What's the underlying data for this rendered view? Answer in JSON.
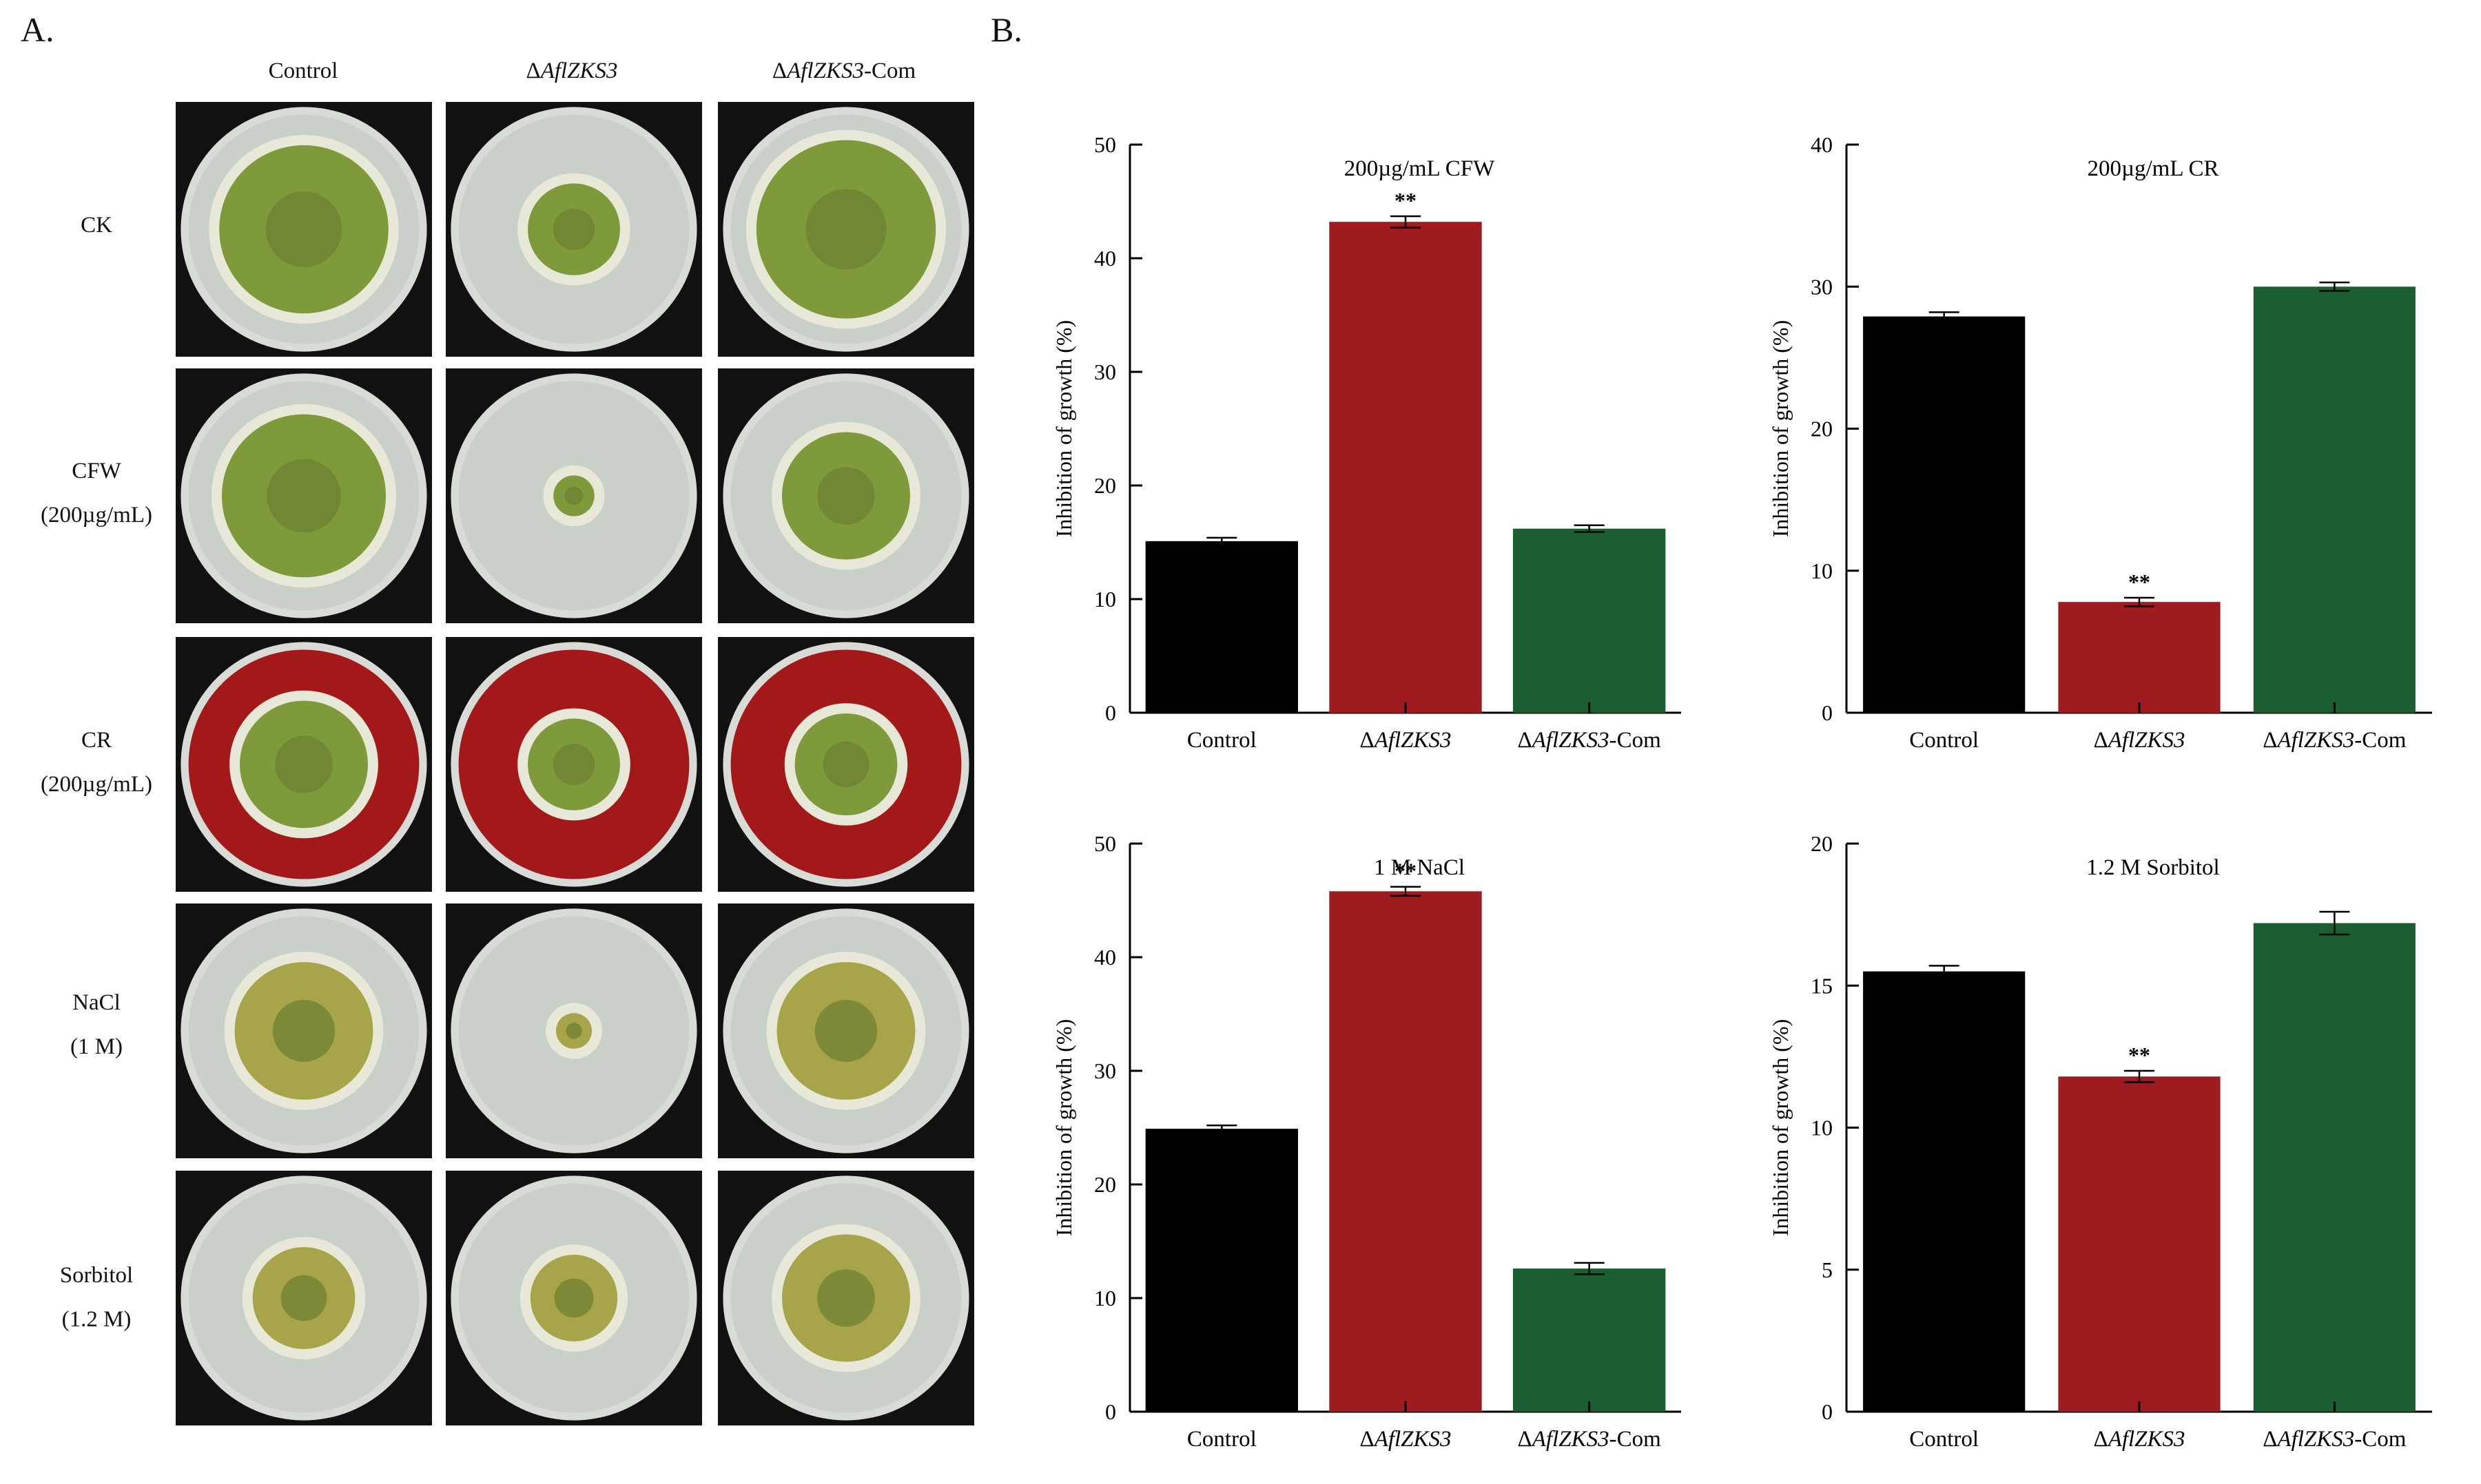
{
  "panel_a": {
    "letter": "A.",
    "column_headers": [
      {
        "prefix": "",
        "italic": "",
        "suffix": "Control"
      },
      {
        "prefix": "Δ",
        "italic": "AflZKS3",
        "suffix": ""
      },
      {
        "prefix": "Δ",
        "italic": "AflZKS3",
        "suffix": "-Com"
      }
    ],
    "row_labels": [
      {
        "line1": "CK",
        "line2": ""
      },
      {
        "line1": "CFW",
        "line2": "(200µg/mL)"
      },
      {
        "line1": "CR",
        "line2": "(200µg/mL)"
      },
      {
        "line1": "NaCl",
        "line2": "(1 M)"
      },
      {
        "line1": "Sorbitol",
        "line2": "(1.2 M)"
      }
    ],
    "colors": {
      "agar": "#c9cfc9",
      "cr_agar": "#a31818",
      "colony_green": "#7f9a3a",
      "colony_yellow": "#a8a44a",
      "tile_bg": "#111111"
    }
  },
  "panel_b": {
    "letter": "B."
  },
  "chart_data": [
    {
      "type": "bar",
      "title": "200µg/mL CFW",
      "ylabel": "Inhibition of growth (%)",
      "categories": [
        {
          "prefix": "",
          "italic": "",
          "suffix": "Control"
        },
        {
          "prefix": "Δ",
          "italic": "AflZKS3",
          "suffix": ""
        },
        {
          "prefix": "Δ",
          "italic": "AflZKS3",
          "suffix": "-Com"
        }
      ],
      "values": [
        15.1,
        43.2,
        16.2
      ],
      "errors": [
        0.3,
        0.5,
        0.3
      ],
      "colors": [
        "#000000",
        "#9e1c20",
        "#1a5e31"
      ],
      "significance": [
        "",
        "**",
        ""
      ],
      "ylim": [
        0,
        50
      ],
      "yticks": [
        0,
        10,
        20,
        30,
        40,
        50
      ]
    },
    {
      "type": "bar",
      "title": "200µg/mL CR",
      "ylabel": "Inhibition of growth (%)",
      "categories": [
        {
          "prefix": "",
          "italic": "",
          "suffix": "Control"
        },
        {
          "prefix": "Δ",
          "italic": "AflZKS3",
          "suffix": ""
        },
        {
          "prefix": "Δ",
          "italic": "AflZKS3",
          "suffix": "-Com"
        }
      ],
      "values": [
        27.9,
        7.8,
        30.0
      ],
      "errors": [
        0.3,
        0.3,
        0.3
      ],
      "colors": [
        "#000000",
        "#9e1c20",
        "#1a5e31"
      ],
      "significance": [
        "",
        "**",
        ""
      ],
      "ylim": [
        0,
        40
      ],
      "yticks": [
        0,
        10,
        20,
        30,
        40
      ]
    },
    {
      "type": "bar",
      "title": "1 M NaCl",
      "ylabel": "Inhibition of growth (%)",
      "categories": [
        {
          "prefix": "",
          "italic": "",
          "suffix": "Control"
        },
        {
          "prefix": "Δ",
          "italic": "AflZKS3",
          "suffix": ""
        },
        {
          "prefix": "Δ",
          "italic": "AflZKS3",
          "suffix": "-Com"
        }
      ],
      "values": [
        24.9,
        45.8,
        12.6
      ],
      "errors": [
        0.3,
        0.4,
        0.5
      ],
      "colors": [
        "#000000",
        "#9e1c20",
        "#1a5e31"
      ],
      "significance": [
        "",
        "**",
        ""
      ],
      "ylim": [
        0,
        50
      ],
      "yticks": [
        0,
        10,
        20,
        30,
        40,
        50
      ]
    },
    {
      "type": "bar",
      "title": "1.2 M Sorbitol",
      "ylabel": "Inhibition of growth (%)",
      "categories": [
        {
          "prefix": "",
          "italic": "",
          "suffix": "Control"
        },
        {
          "prefix": "Δ",
          "italic": "AflZKS3",
          "suffix": ""
        },
        {
          "prefix": "Δ",
          "italic": "AflZKS3",
          "suffix": "-Com"
        }
      ],
      "values": [
        15.5,
        11.8,
        17.2
      ],
      "errors": [
        0.2,
        0.2,
        0.4
      ],
      "colors": [
        "#000000",
        "#9e1c20",
        "#1a5e31"
      ],
      "significance": [
        "",
        "**",
        ""
      ],
      "ylim": [
        0,
        20
      ],
      "yticks": [
        0,
        5,
        10,
        15,
        20
      ]
    }
  ]
}
